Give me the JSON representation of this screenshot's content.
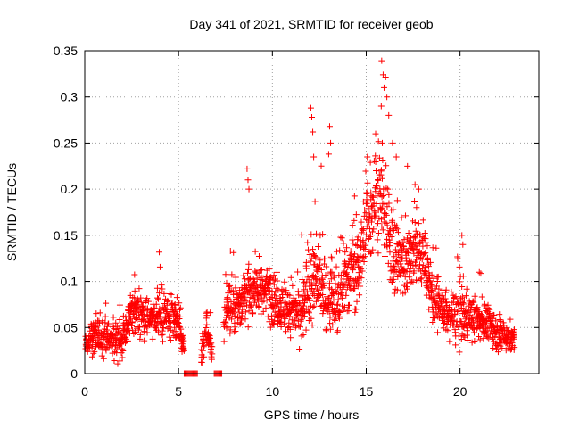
{
  "chart_data": {
    "type": "scatter",
    "title": "Day 341 of 2021, SRMTID for receiver geob",
    "xlabel": "GPS time / hours",
    "ylabel": "SRMTID / TECUs",
    "xlim": [
      0,
      24.2
    ],
    "ylim": [
      0,
      0.35
    ],
    "grid": true,
    "marker": "+",
    "series_color": "#ff0000",
    "x_ticks": [
      0,
      5,
      10,
      15,
      20
    ],
    "x_tick_labels": [
      "0",
      "5",
      "10",
      "15",
      "20"
    ],
    "y_ticks": [
      0,
      0.05,
      0.1,
      0.15,
      0.2,
      0.25,
      0.3,
      0.35
    ],
    "y_tick_labels": [
      "0",
      "0.05",
      "0.1",
      "0.15",
      "0.2",
      "0.25",
      "0.3",
      "0.35"
    ],
    "envelope_hours": [
      0,
      0.5,
      1,
      1.5,
      2,
      2.5,
      3,
      3.5,
      4,
      4.5,
      5,
      5.5,
      6,
      6.5,
      7,
      7.5,
      8,
      8.5,
      9,
      9.5,
      10,
      10.5,
      11,
      11.5,
      12,
      12.5,
      13,
      13.5,
      14,
      14.5,
      15,
      15.5,
      16,
      16.5,
      17,
      17.5,
      18,
      18.5,
      19,
      19.5,
      20,
      20.5,
      21,
      21.5,
      22,
      22.5,
      22.9
    ],
    "envelope_median": [
      0.03,
      0.045,
      0.04,
      0.04,
      0.035,
      0.07,
      0.065,
      0.06,
      0.065,
      0.06,
      0.055,
      0.0,
      0.0,
      0.05,
      0.0,
      0.065,
      0.075,
      0.085,
      0.09,
      0.095,
      0.085,
      0.07,
      0.07,
      0.065,
      0.095,
      0.1,
      0.085,
      0.08,
      0.1,
      0.11,
      0.16,
      0.19,
      0.18,
      0.13,
      0.12,
      0.13,
      0.13,
      0.085,
      0.07,
      0.06,
      0.065,
      0.06,
      0.06,
      0.055,
      0.045,
      0.04,
      0.035
    ],
    "envelope_spread": [
      0.015,
      0.02,
      0.02,
      0.02,
      0.02,
      0.025,
      0.025,
      0.02,
      0.025,
      0.025,
      0.02,
      0.0,
      0.0,
      0.02,
      0.0,
      0.025,
      0.03,
      0.03,
      0.03,
      0.03,
      0.03,
      0.025,
      0.025,
      0.03,
      0.045,
      0.045,
      0.035,
      0.035,
      0.035,
      0.04,
      0.05,
      0.06,
      0.06,
      0.05,
      0.045,
      0.04,
      0.035,
      0.03,
      0.025,
      0.025,
      0.03,
      0.025,
      0.02,
      0.02,
      0.02,
      0.015,
      0.015
    ],
    "zero_value_segments": [
      [
        5.3,
        6.0
      ],
      [
        6.9,
        7.3
      ]
    ],
    "gap_segments": [
      [
        5.3,
        6.2
      ],
      [
        6.8,
        7.4
      ]
    ],
    "spikes": [
      {
        "x": 8.65,
        "y": 0.222
      },
      {
        "x": 8.7,
        "y": 0.21
      },
      {
        "x": 8.75,
        "y": 0.2
      },
      {
        "x": 12.05,
        "y": 0.288
      },
      {
        "x": 12.1,
        "y": 0.278
      },
      {
        "x": 12.15,
        "y": 0.262
      },
      {
        "x": 12.2,
        "y": 0.235
      },
      {
        "x": 12.6,
        "y": 0.225
      },
      {
        "x": 13.0,
        "y": 0.238
      },
      {
        "x": 13.05,
        "y": 0.268
      },
      {
        "x": 13.1,
        "y": 0.25
      },
      {
        "x": 15.5,
        "y": 0.26
      },
      {
        "x": 15.8,
        "y": 0.29
      },
      {
        "x": 15.9,
        "y": 0.324
      },
      {
        "x": 15.95,
        "y": 0.31
      },
      {
        "x": 16.1,
        "y": 0.3
      },
      {
        "x": 16.2,
        "y": 0.28
      },
      {
        "x": 16.4,
        "y": 0.25
      },
      {
        "x": 16.6,
        "y": 0.235
      },
      {
        "x": 17.6,
        "y": 0.205
      },
      {
        "x": 17.8,
        "y": 0.2
      },
      {
        "x": 20.1,
        "y": 0.15
      },
      {
        "x": 20.15,
        "y": 0.14
      }
    ]
  }
}
